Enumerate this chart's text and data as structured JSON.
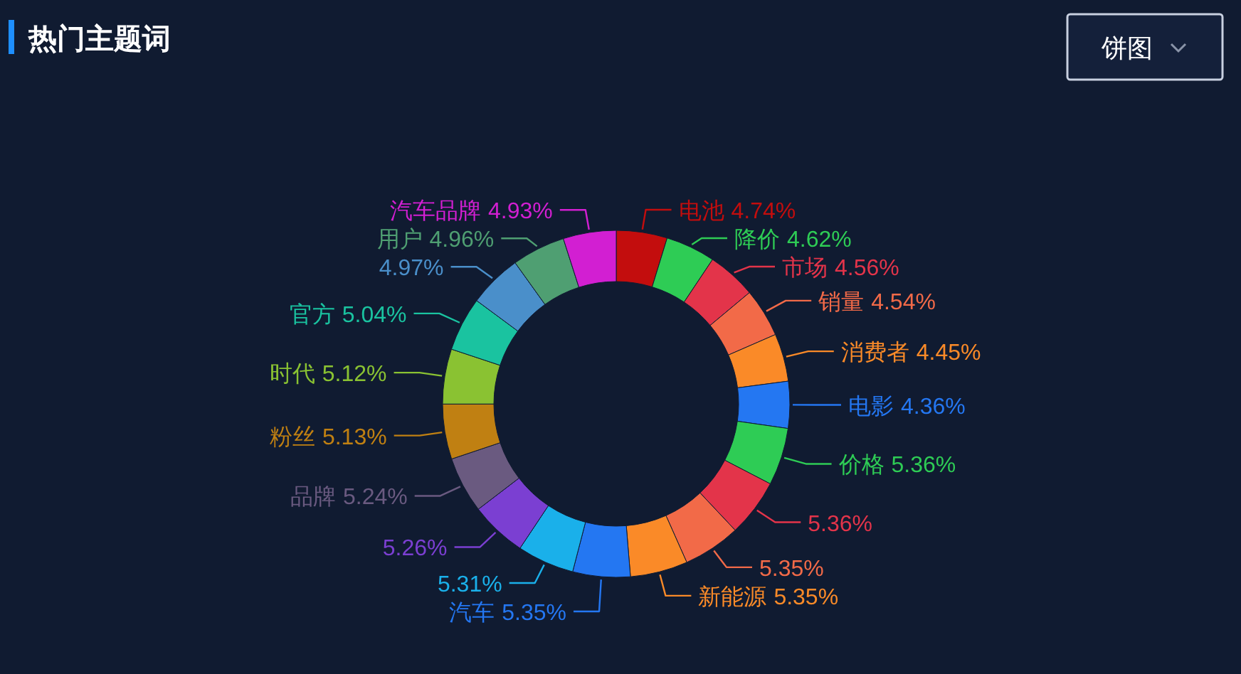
{
  "chart_data": {
    "type": "donut",
    "title": "热门主题词",
    "categories": [
      "电池",
      "降价",
      "市场",
      "销量",
      "消费者",
      "电影",
      "价格",
      null,
      null,
      "新能源",
      "汽车",
      null,
      null,
      "品牌",
      "粉丝",
      "时代",
      "官方",
      null,
      "用户",
      "汽车品牌"
    ],
    "values": [
      4.74,
      4.62,
      4.56,
      4.54,
      4.45,
      4.36,
      5.36,
      5.36,
      5.35,
      5.35,
      5.35,
      5.31,
      5.26,
      5.24,
      5.13,
      5.12,
      5.04,
      4.97,
      4.96,
      4.93
    ],
    "colors": [
      "#c30d0d",
      "#2ecc55",
      "#e3344a",
      "#f26a48",
      "#fa8a28",
      "#2477f2",
      "#2ecc55",
      "#e3344a",
      "#f26a48",
      "#fa8a28",
      "#2477f2",
      "#1ab0ea",
      "#7b3fd2",
      "#6a5a80",
      "#c08012",
      "#8ac232",
      "#1ac3a0",
      "#4a8fca",
      "#4f9f72",
      "#d21fd2"
    ],
    "value_labels": [
      "4.74%",
      "4.62%",
      "4.56%",
      "4.54%",
      "4.45%",
      "4.36%",
      "5.36%",
      "5.36%",
      "5.35%",
      "5.35%",
      "5.35%",
      "5.31%",
      "5.26%",
      "5.24%",
      "5.13%",
      "5.12%",
      "5.04%",
      "4.97%",
      "4.96%",
      "4.93%"
    ],
    "annotations": [
      "饼图"
    ]
  }
}
